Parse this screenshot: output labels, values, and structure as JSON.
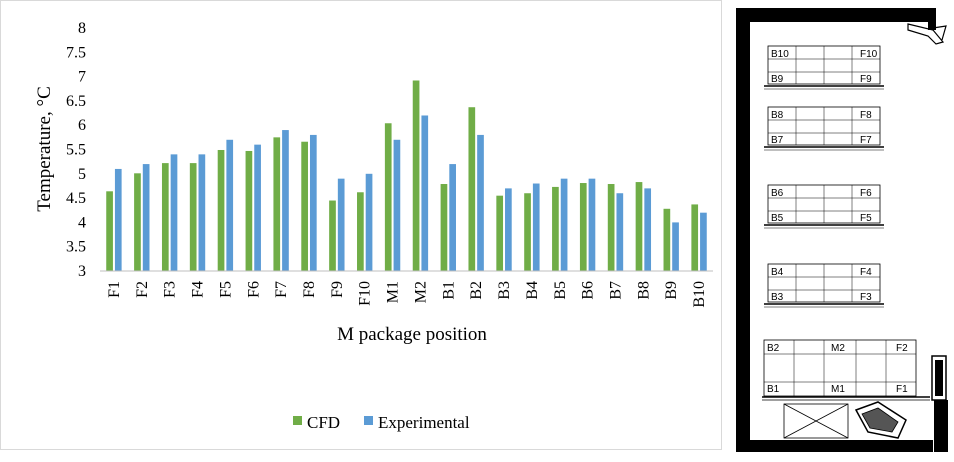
{
  "chart_data": {
    "type": "bar",
    "categories": [
      "F1",
      "F2",
      "F3",
      "F4",
      "F5",
      "F6",
      "F7",
      "F8",
      "F9",
      "F10",
      "M1",
      "M2",
      "B1",
      "B2",
      "B3",
      "B4",
      "B5",
      "B6",
      "B7",
      "B8",
      "B9",
      "B10"
    ],
    "series": [
      {
        "name": "CFD",
        "color": "#70ad47",
        "values": [
          4.64,
          5.01,
          5.22,
          5.22,
          5.49,
          5.47,
          5.75,
          5.66,
          4.45,
          4.62,
          6.04,
          6.92,
          4.79,
          6.37,
          4.55,
          4.6,
          4.73,
          4.81,
          4.79,
          4.83,
          4.28,
          4.37
        ]
      },
      {
        "name": "Experimental",
        "color": "#5b9bd5",
        "values": [
          5.1,
          5.2,
          5.4,
          5.4,
          5.7,
          5.6,
          5.9,
          5.8,
          4.9,
          5.0,
          5.7,
          6.2,
          5.2,
          5.8,
          4.7,
          4.8,
          4.9,
          4.9,
          4.6,
          4.7,
          4.0,
          4.2
        ]
      }
    ],
    "yticks": [
      "3",
      "3.5",
      "4",
      "4.5",
      "5",
      "5.5",
      "6",
      "6.5",
      "7",
      "7.5",
      "8"
    ],
    "ylim": [
      3,
      8
    ],
    "xlabel": "M package position",
    "ylabel": "Temperature, °C",
    "legend": "bottom-center",
    "grid": false
  },
  "diagram": {
    "shelves": [
      {
        "top_left": "B10",
        "top_right": "F10",
        "bottom_left": "B9",
        "bottom_right": "F9"
      },
      {
        "top_left": "B8",
        "top_right": "F8",
        "bottom_left": "B7",
        "bottom_right": "F7"
      },
      {
        "top_left": "B6",
        "top_right": "F6",
        "bottom_left": "B5",
        "bottom_right": "F5"
      },
      {
        "top_left": "B4",
        "top_right": "F4",
        "bottom_left": "B3",
        "bottom_right": "F3"
      }
    ],
    "bottom_shelf": {
      "top_left": "B2",
      "top_mid": "M2",
      "top_right": "F2",
      "bottom_left": "B1",
      "bottom_mid": "M1",
      "bottom_right": "F1"
    }
  }
}
